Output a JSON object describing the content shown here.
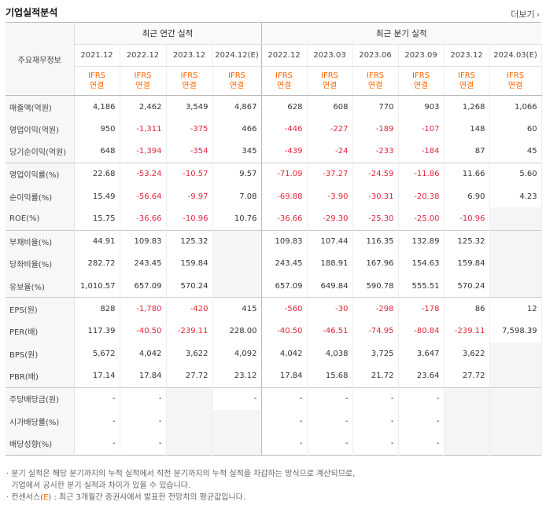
{
  "title": "기업실적분석",
  "more_label": "더보기",
  "header": {
    "row_header": "주요재무정보",
    "annual_group": "최근 연간 실적",
    "quarter_group": "최근 분기 실적",
    "annual_periods": [
      "2021.12",
      "2022.12",
      "2023.12",
      "2024.12(E)"
    ],
    "quarter_periods": [
      "2022.12",
      "2023.03",
      "2023.06",
      "2023.09",
      "2023.12",
      "2024.03(E)"
    ],
    "ifrs_label": "IFRS",
    "consolidated_label": "연결"
  },
  "rows": [
    {
      "label": "매출액(억원)",
      "values": [
        "4,186",
        "2,462",
        "3,549",
        "4,867",
        "628",
        "608",
        "770",
        "903",
        "1,268",
        "1,066"
      ]
    },
    {
      "label": "영업이익(억원)",
      "values": [
        "950",
        "-1,311",
        "-375",
        "466",
        "-446",
        "-227",
        "-189",
        "-107",
        "148",
        "60"
      ]
    },
    {
      "label": "당기순이익(억원)",
      "values": [
        "648",
        "-1,394",
        "-354",
        "345",
        "-439",
        "-24",
        "-233",
        "-184",
        "87",
        "45"
      ]
    },
    {
      "label": "영업이익률(%)",
      "values": [
        "22.68",
        "-53.24",
        "-10.57",
        "9.57",
        "-71.09",
        "-37.27",
        "-24.59",
        "-11.86",
        "11.66",
        "5.60"
      ]
    },
    {
      "label": "순이익률(%)",
      "values": [
        "15.49",
        "-56.64",
        "-9.97",
        "7.08",
        "-69.88",
        "-3.90",
        "-30.31",
        "-20.38",
        "6.90",
        "4.23"
      ]
    },
    {
      "label": "ROE(%)",
      "values": [
        "15.75",
        "-36.66",
        "-10.96",
        "10.76",
        "-36.66",
        "-29.30",
        "-25.30",
        "-25.00",
        "-10.96",
        ""
      ]
    },
    {
      "label": "부채비율(%)",
      "values": [
        "44.91",
        "109.83",
        "125.32",
        "",
        "109.83",
        "107.44",
        "116.35",
        "132.89",
        "125.32",
        ""
      ]
    },
    {
      "label": "당좌비율(%)",
      "values": [
        "282.72",
        "243.45",
        "159.84",
        "",
        "243.45",
        "188.91",
        "167.96",
        "154.63",
        "159.84",
        ""
      ]
    },
    {
      "label": "유보율(%)",
      "values": [
        "1,010.57",
        "657.09",
        "570.24",
        "",
        "657.09",
        "649.84",
        "590.78",
        "555.51",
        "570.24",
        ""
      ]
    },
    {
      "label": "EPS(원)",
      "values": [
        "828",
        "-1,780",
        "-420",
        "415",
        "-560",
        "-30",
        "-298",
        "-178",
        "86",
        "12"
      ]
    },
    {
      "label": "PER(배)",
      "values": [
        "117.39",
        "-40.50",
        "-239.11",
        "228.00",
        "-40.50",
        "-46.51",
        "-74.95",
        "-80.84",
        "-239.11",
        "7,598.39"
      ]
    },
    {
      "label": "BPS(원)",
      "values": [
        "5,672",
        "4,042",
        "3,622",
        "4,092",
        "4,042",
        "4,038",
        "3,725",
        "3,647",
        "3,622",
        ""
      ]
    },
    {
      "label": "PBR(배)",
      "values": [
        "17.14",
        "17.84",
        "27.72",
        "23.12",
        "17.84",
        "15.68",
        "21.72",
        "23.64",
        "27.72",
        ""
      ]
    },
    {
      "label": "주당배당금(원)",
      "values": [
        "-",
        "-",
        "",
        "-",
        "-",
        "-",
        "-",
        "-",
        "",
        ""
      ]
    },
    {
      "label": "시가배당률(%)",
      "values": [
        "-",
        "-",
        "",
        "",
        "-",
        "-",
        "-",
        "-",
        "",
        ""
      ]
    },
    {
      "label": "배당성향(%)",
      "values": [
        "-",
        "-",
        "",
        "",
        "-",
        "-",
        "-",
        "-",
        "",
        ""
      ]
    }
  ],
  "notes": {
    "line1": "· 분기 실적은 해당 분기까지의 누적 실적에서 직전 분기까지의 누적 실적을 차감하는 방식으로 계산되므로,",
    "line2": "  기업에서 공시한 분기 실적과 차이가 있을 수 있습니다.",
    "line3_prefix": "· 컨센서스(",
    "line3_e": "E",
    "line3_suffix": ") : 최근 3개월간 증권사에서 발표한 전망치의 평균값입니다."
  }
}
